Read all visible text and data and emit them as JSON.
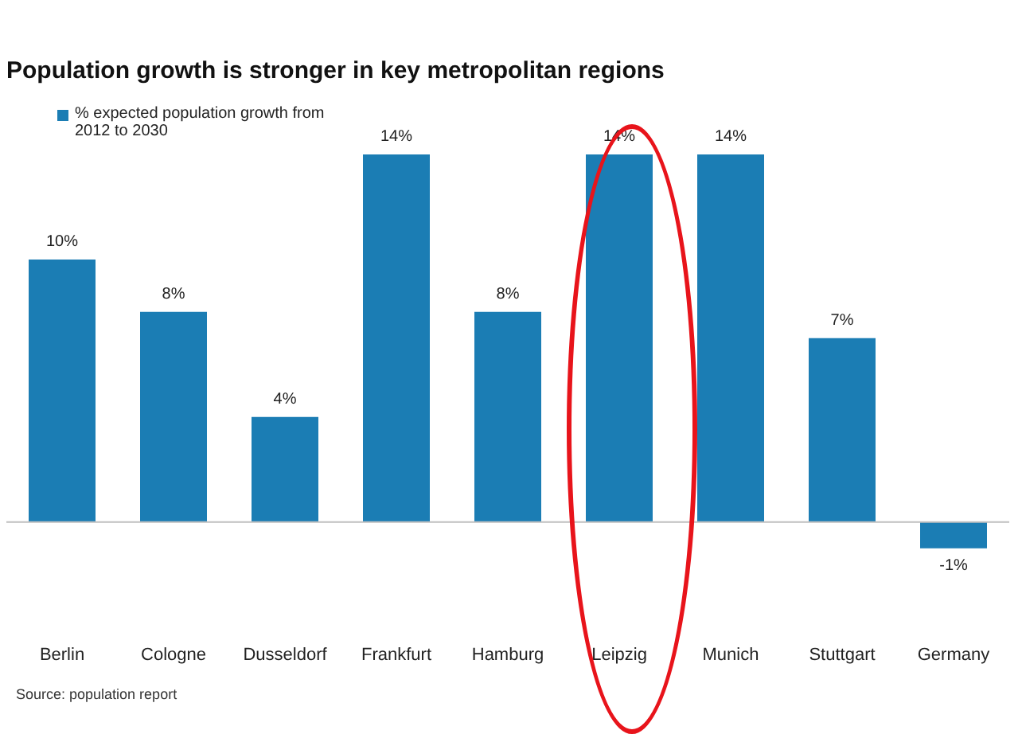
{
  "chart_data": {
    "type": "bar",
    "title": "Population growth is stronger in key metropolitan regions",
    "categories": [
      "Berlin",
      "Cologne",
      "Dusseldorf",
      "Frankfurt",
      "Hamburg",
      "Leipzig",
      "Munich",
      "Stuttgart",
      "Germany"
    ],
    "series": [
      {
        "name": "% expected population growth from 2012 to 2030",
        "color": "#1b7db4",
        "values": [
          10,
          8,
          4,
          14,
          8,
          14,
          14,
          7,
          -1
        ],
        "value_labels": [
          "10%",
          "8%",
          "4%",
          "14%",
          "8%",
          "14%",
          "14%",
          "7%",
          "-1%"
        ]
      }
    ],
    "legend": "top left",
    "grid": false,
    "annotations": [
      "Source: population report"
    ]
  }
}
